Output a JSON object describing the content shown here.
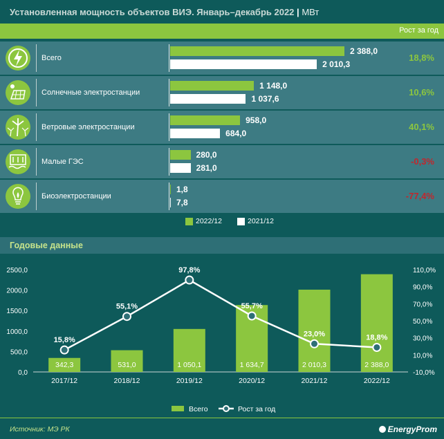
{
  "header": {
    "title": "Установленная мощность объектов ВИЭ. Январь–декабрь 2022",
    "unit": "МВт",
    "growth_header": "Рост за год"
  },
  "rows": [
    {
      "label": "Всего",
      "v2022": "2 388,0",
      "v2021": "2 010,3",
      "growth": "18,8%",
      "growth_color": "#8cc63f",
      "icon": "lightning-icon"
    },
    {
      "label": "Солнечные электростанции",
      "v2022": "1 148,0",
      "v2021": "1 037,6",
      "growth": "10,6%",
      "growth_color": "#8cc63f",
      "icon": "solar-panel-icon"
    },
    {
      "label": "Ветровые электростанции",
      "v2022": "958,0",
      "v2021": "684,0",
      "growth": "40,1%",
      "growth_color": "#8cc63f",
      "icon": "wind-turbine-icon"
    },
    {
      "label": "Малые ГЭС",
      "v2022": "280,0",
      "v2021": "281,0",
      "growth": "-0,3%",
      "growth_color": "#c0272d",
      "icon": "hydro-dam-icon"
    },
    {
      "label": "Биоэлектростанции",
      "v2022": "1,8",
      "v2021": "7,8",
      "growth": "-77,4%",
      "growth_color": "#c0272d",
      "icon": "bio-bulb-icon"
    }
  ],
  "legend_top": {
    "a": "2022/12",
    "b": "2021/12"
  },
  "annual": {
    "title": "Годовые данные",
    "legend_bars": "Всего",
    "legend_line": "Рост за год"
  },
  "footer": {
    "source": "Источник: МЭ РК",
    "brand": "EnergyProm"
  },
  "colors": {
    "green": "#8cc63f",
    "white": "#ffffff",
    "red": "#c0272d",
    "background": "#0e5a5a",
    "row": "#3d7b83"
  },
  "chart_data": [
    {
      "type": "bar",
      "categories": [
        "Всего",
        "Солнечные электростанции",
        "Ветровые электростанции",
        "Малые ГЭС",
        "Биоэлектростанции"
      ],
      "series": [
        {
          "name": "2022/12",
          "values": [
            2388.0,
            1148.0,
            958.0,
            280.0,
            1.8
          ]
        },
        {
          "name": "2021/12",
          "values": [
            2010.3,
            1037.6,
            684.0,
            281.0,
            7.8
          ]
        }
      ],
      "growth": [
        "18,8%",
        "10,6%",
        "40,1%",
        "-0,3%",
        "-77,4%"
      ],
      "title": "Установленная мощность объектов ВИЭ. Январь–декабрь 2022",
      "orientation": "horizontal"
    },
    {
      "type": "bar",
      "title": "Годовые данные",
      "categories": [
        "2017/12",
        "2018/12",
        "2019/12",
        "2020/12",
        "2021/12",
        "2022/12"
      ],
      "series": [
        {
          "name": "Всего",
          "type": "bar",
          "axis": "left",
          "values": [
            342.3,
            531.0,
            1050.1,
            1634.7,
            2010.3,
            2388.0
          ],
          "labels": [
            "342,3",
            "531,0",
            "1 050,1",
            "1 634,7",
            "2 010,3",
            "2 388,0"
          ]
        },
        {
          "name": "Рост за год",
          "type": "line",
          "axis": "right",
          "values": [
            15.8,
            55.1,
            97.8,
            55.7,
            23.0,
            18.8
          ],
          "labels": [
            "15,8%",
            "55,1%",
            "97,8%",
            "55,7%",
            "23,0%",
            "18,8%"
          ]
        }
      ],
      "ylim_left": [
        0,
        2500
      ],
      "yticks_left": [
        "0,0",
        "500,0",
        "1000,0",
        "1500,0",
        "2000,0",
        "2500,0"
      ],
      "ylim_right": [
        -10,
        110
      ],
      "yticks_right": [
        "-10,0%",
        "10,0%",
        "30,0%",
        "50,0%",
        "70,0%",
        "90,0%",
        "110,0%"
      ],
      "legend": "bottom-center",
      "grid": false
    }
  ]
}
